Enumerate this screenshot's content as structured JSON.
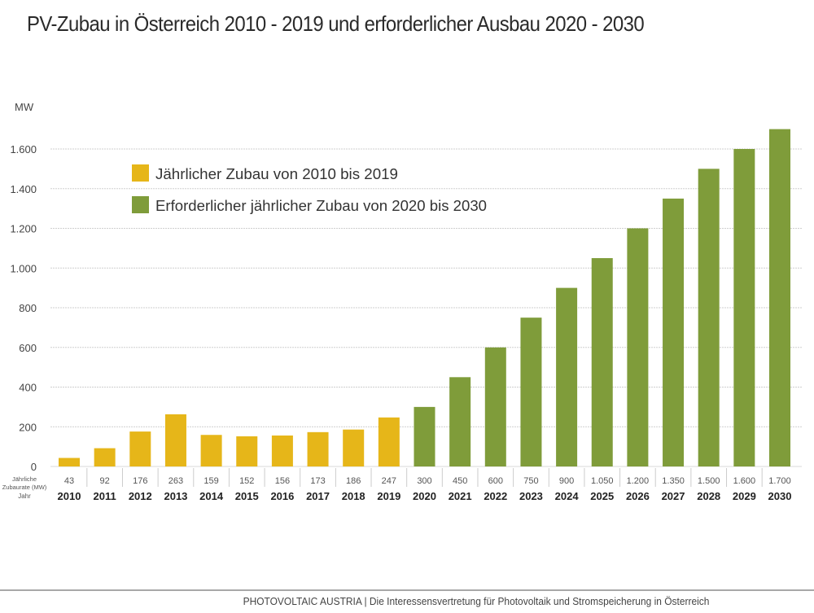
{
  "title": "PV-Zubau in Österreich 2010 - 2019 und erforderlicher Ausbau 2020 - 2030",
  "footer": {
    "text": "PHOTOVOLTAIC AUSTRIA  |  Die Interessensvertretung für Photovoltaik und Stromspeicherung in Österreich"
  },
  "colors": {
    "historic": "#E6B619",
    "required": "#7F9C3A",
    "grid": "#cfcfcf",
    "separator": "#cccccc"
  },
  "chart_data": {
    "type": "bar",
    "title": "PV-Zubau in Österreich 2010 - 2019 und erforderlicher Ausbau 2020 - 2030",
    "ylabel": "MW",
    "xlabel": "Jahr",
    "ylim": [
      0,
      1600
    ],
    "yticks": [
      0,
      200,
      400,
      600,
      800,
      1000,
      1200,
      1400,
      1600
    ],
    "ytick_labels": [
      "0",
      "200",
      "400",
      "600",
      "800",
      "1.000",
      "1.200",
      "1.400",
      "1.600"
    ],
    "grid": true,
    "legend_position": "top-left",
    "row_labels": {
      "values": [
        "Jährliche",
        "Zubaurate (MW)"
      ],
      "year": "Jahr"
    },
    "categories": [
      "2010",
      "2011",
      "2012",
      "2013",
      "2014",
      "2015",
      "2016",
      "2017",
      "2018",
      "2019",
      "2020",
      "2021",
      "2022",
      "2023",
      "2024",
      "2025",
      "2026",
      "2027",
      "2028",
      "2029",
      "2030"
    ],
    "series": [
      {
        "name": "Jährlicher Zubau von 2010 bis 2019",
        "color": "#E6B619",
        "values": [
          43,
          92,
          176,
          263,
          159,
          152,
          156,
          173,
          186,
          247,
          null,
          null,
          null,
          null,
          null,
          null,
          null,
          null,
          null,
          null,
          null
        ]
      },
      {
        "name": "Erforderlicher jährlicher Zubau von 2020 bis 2030",
        "color": "#7F9C3A",
        "values": [
          null,
          null,
          null,
          null,
          null,
          null,
          null,
          null,
          null,
          null,
          300,
          450,
          600,
          750,
          900,
          1050,
          1200,
          1350,
          1500,
          1600,
          1700
        ]
      }
    ],
    "value_labels": [
      "43",
      "92",
      "176",
      "263",
      "159",
      "152",
      "156",
      "173",
      "186",
      "247",
      "300",
      "450",
      "600",
      "750",
      "900",
      "1.050",
      "1.200",
      "1.350",
      "1.500",
      "1.600",
      "1.700"
    ]
  }
}
